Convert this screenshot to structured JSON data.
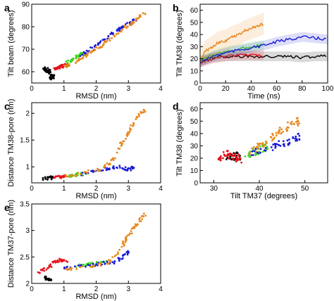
{
  "colors": {
    "black": "#000000",
    "red": "#e8101a",
    "green": "#39d51c",
    "blue": "#1a1ad6",
    "orange": "#e8871e"
  },
  "chart_data": [
    {
      "id": "a",
      "type": "scatter",
      "panel_label": "a",
      "xlabel": "RMSD (nm)",
      "ylabel": "Tilt beam (degrees)",
      "xlim": [
        0,
        4
      ],
      "ylim": [
        55,
        90
      ],
      "xticks": [
        0,
        1,
        2,
        3,
        4
      ],
      "yticks": [
        60,
        70,
        80,
        90
      ],
      "series": [
        {
          "color": "black",
          "points": [
            [
              0.35,
              60.5
            ],
            [
              0.45,
              61.5
            ],
            [
              0.5,
              59.5
            ],
            [
              0.55,
              60.8
            ],
            [
              0.6,
              57.5
            ],
            [
              0.65,
              57
            ],
            [
              0.7,
              58.5
            ]
          ]
        },
        {
          "color": "red",
          "points": [
            [
              0.7,
              61
            ],
            [
              0.8,
              61.8
            ],
            [
              0.9,
              62.2
            ],
            [
              1.0,
              62.8
            ],
            [
              1.1,
              63
            ]
          ]
        },
        {
          "color": "green",
          "points": [
            [
              1.1,
              64
            ],
            [
              1.25,
              65.5
            ],
            [
              1.4,
              66.8
            ],
            [
              1.55,
              68
            ],
            [
              1.7,
              67.5
            ]
          ]
        },
        {
          "color": "blue",
          "points": [
            [
              1.5,
              67
            ],
            [
              1.8,
              69.5
            ],
            [
              2.1,
              72.5
            ],
            [
              2.4,
              76
            ],
            [
              2.7,
              79
            ],
            [
              3.0,
              81.5
            ],
            [
              3.2,
              83
            ]
          ]
        },
        {
          "color": "orange",
          "points": [
            [
              1.0,
              62
            ],
            [
              1.3,
              64
            ],
            [
              1.6,
              66.5
            ],
            [
              1.9,
              69
            ],
            [
              2.2,
              72
            ],
            [
              2.5,
              75
            ],
            [
              2.8,
              78.5
            ],
            [
              3.1,
              81.5
            ],
            [
              3.3,
              84
            ],
            [
              3.5,
              86
            ]
          ]
        }
      ]
    },
    {
      "id": "b",
      "type": "line",
      "panel_label": "b",
      "xlabel": "Time (ns)",
      "ylabel": "Tilt TM38 (degrees)",
      "xlim": [
        0,
        100
      ],
      "ylim": [
        0,
        65
      ],
      "xticks": [
        0,
        20,
        40,
        60,
        80,
        100
      ],
      "yticks": [
        0,
        10,
        20,
        30,
        40,
        50,
        60
      ],
      "series": [
        {
          "color": "black",
          "x": [
            0,
            10,
            20,
            30,
            40,
            50,
            60,
            70,
            80,
            90,
            100
          ],
          "y": [
            18,
            21,
            22,
            22,
            22,
            22,
            22,
            22,
            21,
            22,
            22
          ]
        },
        {
          "color": "red",
          "x": [
            0,
            10,
            20,
            30,
            40,
            50
          ],
          "y": [
            17,
            20,
            22,
            23,
            23,
            23
          ]
        },
        {
          "color": "green",
          "x": [
            0,
            10,
            20,
            30,
            40,
            50
          ],
          "y": [
            19,
            23,
            26,
            28,
            30,
            31
          ]
        },
        {
          "color": "blue",
          "x": [
            0,
            10,
            20,
            30,
            40,
            50,
            60,
            70,
            80,
            90,
            100
          ],
          "y": [
            17,
            22,
            25,
            27,
            29,
            31,
            34,
            36,
            38,
            37,
            36
          ]
        },
        {
          "color": "orange",
          "x": [
            0,
            5,
            10,
            15,
            20,
            25,
            30,
            35,
            40,
            45,
            50
          ],
          "y": [
            20,
            27,
            30,
            34,
            35,
            38,
            40,
            43,
            45,
            47,
            49
          ]
        }
      ]
    },
    {
      "id": "c",
      "type": "scatter",
      "panel_label": "c",
      "xlabel": "RMSD (nm)",
      "ylabel": "Distance TM38-pore (nm)",
      "xlim": [
        0,
        4
      ],
      "ylim": [
        0.7,
        2.2
      ],
      "xticks": [
        0,
        1,
        2,
        3,
        4
      ],
      "yticks": [
        1,
        1.5,
        2
      ],
      "series": [
        {
          "color": "black",
          "points": [
            [
              0.3,
              0.78
            ],
            [
              0.5,
              0.79
            ],
            [
              0.7,
              0.8
            ]
          ]
        },
        {
          "color": "red",
          "points": [
            [
              0.7,
              0.8
            ],
            [
              0.9,
              0.81
            ],
            [
              1.1,
              0.82
            ]
          ]
        },
        {
          "color": "green",
          "points": [
            [
              1.1,
              0.83
            ],
            [
              1.4,
              0.85
            ],
            [
              1.7,
              0.88
            ]
          ]
        },
        {
          "color": "blue",
          "points": [
            [
              1.5,
              0.86
            ],
            [
              2.0,
              0.92
            ],
            [
              2.4,
              0.98
            ],
            [
              2.7,
              1.0
            ],
            [
              3.0,
              0.95
            ],
            [
              3.2,
              1.0
            ]
          ]
        },
        {
          "color": "orange",
          "points": [
            [
              1.0,
              0.82
            ],
            [
              1.6,
              0.88
            ],
            [
              2.1,
              0.95
            ],
            [
              2.5,
              1.1
            ],
            [
              2.7,
              1.35
            ],
            [
              2.9,
              1.55
            ],
            [
              3.1,
              1.75
            ],
            [
              3.3,
              1.95
            ],
            [
              3.5,
              2.05
            ]
          ]
        }
      ]
    },
    {
      "id": "d",
      "type": "scatter",
      "panel_label": "d",
      "xlabel": "Tilt TM37 (degrees)",
      "ylabel": "Tilt TM38 (degrees)",
      "xlim": [
        27,
        55
      ],
      "ylim": [
        0,
        65
      ],
      "xticks": [
        30,
        40,
        50
      ],
      "yticks": [
        0,
        10,
        20,
        30,
        40,
        50,
        60
      ],
      "series": [
        {
          "color": "black",
          "points": [
            [
              33,
              20
            ],
            [
              34,
              21
            ],
            [
              35,
              22
            ],
            [
              36,
              20
            ]
          ]
        },
        {
          "color": "red",
          "points": [
            [
              31,
              20
            ],
            [
              32,
              22
            ],
            [
              33,
              23
            ],
            [
              34,
              21
            ],
            [
              35,
              20
            ],
            [
              36,
              19
            ]
          ]
        },
        {
          "color": "green",
          "points": [
            [
              37,
              22
            ],
            [
              39,
              25
            ],
            [
              41,
              28
            ],
            [
              42,
              30
            ]
          ]
        },
        {
          "color": "blue",
          "points": [
            [
              38,
              23
            ],
            [
              41,
              27
            ],
            [
              44,
              30
            ],
            [
              46,
              33
            ],
            [
              48,
              36
            ],
            [
              49,
              38
            ]
          ]
        },
        {
          "color": "orange",
          "points": [
            [
              38,
              25
            ],
            [
              40,
              30
            ],
            [
              42,
              35
            ],
            [
              44,
              40
            ],
            [
              46,
              45
            ],
            [
              48,
              48
            ],
            [
              49,
              52
            ]
          ]
        }
      ]
    },
    {
      "id": "e",
      "type": "scatter",
      "panel_label": "e",
      "xlabel": "RMSD (nm)",
      "ylabel": "Distance TM37-pore (nm)",
      "xlim": [
        0,
        4
      ],
      "ylim": [
        2,
        3.5
      ],
      "xticks": [
        0,
        1,
        2,
        3,
        4
      ],
      "yticks": [
        2,
        2.5,
        3,
        3.5
      ],
      "series": [
        {
          "color": "black",
          "points": [
            [
              0.4,
              2.12
            ],
            [
              0.5,
              2.08
            ],
            [
              0.6,
              2.05
            ]
          ]
        },
        {
          "color": "red",
          "points": [
            [
              0.2,
              2.2
            ],
            [
              0.5,
              2.3
            ],
            [
              0.7,
              2.4
            ],
            [
              0.9,
              2.45
            ],
            [
              1.1,
              2.4
            ]
          ]
        },
        {
          "color": "green",
          "points": [
            [
              1.4,
              2.33
            ],
            [
              1.7,
              2.35
            ],
            [
              2.0,
              2.38
            ],
            [
              2.3,
              2.4
            ]
          ]
        },
        {
          "color": "blue",
          "points": [
            [
              1.0,
              2.28
            ],
            [
              1.6,
              2.33
            ],
            [
              2.2,
              2.38
            ],
            [
              2.6,
              2.4
            ],
            [
              2.8,
              2.5
            ],
            [
              3.0,
              2.6
            ]
          ]
        },
        {
          "color": "orange",
          "points": [
            [
              1.0,
              2.25
            ],
            [
              1.8,
              2.32
            ],
            [
              2.4,
              2.4
            ],
            [
              2.7,
              2.6
            ],
            [
              2.9,
              2.8
            ],
            [
              3.1,
              3.0
            ],
            [
              3.3,
              3.15
            ],
            [
              3.5,
              3.3
            ]
          ]
        }
      ]
    }
  ]
}
